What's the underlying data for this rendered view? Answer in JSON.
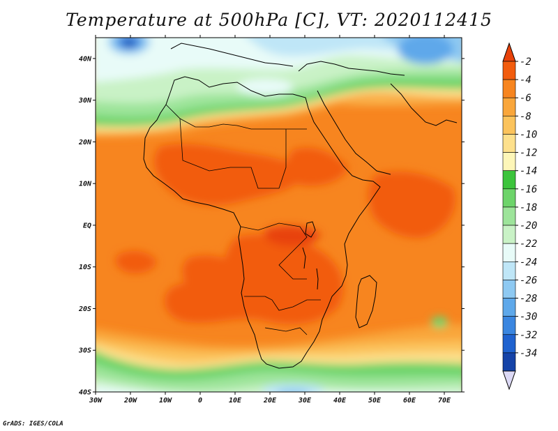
{
  "title": "Temperature at 500hPa [C], VT: 2020112415",
  "credit": "GrADS: IGES/COLA",
  "map": {
    "lon_range": [
      -30,
      75
    ],
    "lat_range": [
      -40,
      45
    ],
    "lon_ticks": [
      {
        "value": -30,
        "label": "30W"
      },
      {
        "value": -20,
        "label": "20W"
      },
      {
        "value": -10,
        "label": "10W"
      },
      {
        "value": 0,
        "label": "0"
      },
      {
        "value": 10,
        "label": "10E"
      },
      {
        "value": 20,
        "label": "20E"
      },
      {
        "value": 30,
        "label": "30E"
      },
      {
        "value": 40,
        "label": "40E"
      },
      {
        "value": 50,
        "label": "50E"
      },
      {
        "value": 60,
        "label": "60E"
      },
      {
        "value": 70,
        "label": "70E"
      }
    ],
    "lat_ticks": [
      {
        "value": 40,
        "label": "40N"
      },
      {
        "value": 30,
        "label": "30N"
      },
      {
        "value": 20,
        "label": "20N"
      },
      {
        "value": 10,
        "label": "10N"
      },
      {
        "value": 0,
        "label": "EQ"
      },
      {
        "value": -10,
        "label": "10S"
      },
      {
        "value": -20,
        "label": "20S"
      },
      {
        "value": -30,
        "label": "30S"
      },
      {
        "value": -40,
        "label": "40S"
      }
    ]
  },
  "colorbar": {
    "levels": [
      -2,
      -4,
      -6,
      -8,
      -10,
      -12,
      -14,
      -16,
      -18,
      -20,
      -22,
      -24,
      -26,
      -28,
      -30,
      -32,
      -34
    ],
    "colors": [
      "#e8420a",
      "#f25c0d",
      "#f7851f",
      "#f9a63b",
      "#fbc35c",
      "#fde08c",
      "#fdf6b8",
      "#3cc43c",
      "#6dd46a",
      "#9de49a",
      "#c9f2c6",
      "#e8fbf8",
      "#bfe6f7",
      "#8ec9f2",
      "#5ea8ea",
      "#3a86e0",
      "#1f62cf",
      "#1543a8",
      "#0d2a7a"
    ],
    "upper_triangle_color": "#e8420a",
    "lower_triangle_color": "#dcd9f5"
  }
}
